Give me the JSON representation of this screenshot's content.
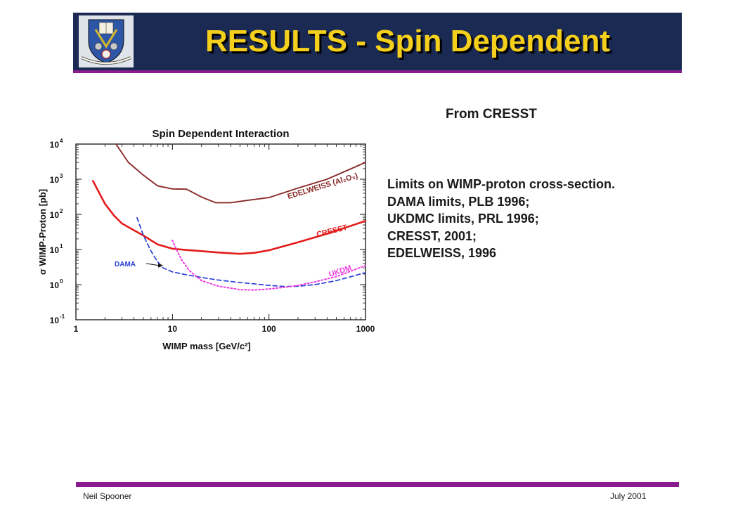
{
  "header": {
    "title": "RESULTS - Spin Dependent",
    "logo_icon": "university-crest-icon",
    "background_color": "#1b2a52",
    "title_color": "#f4cf1c",
    "rule_color": "#8a1b8f"
  },
  "side_heading": "From CRESST",
  "notes": [
    "Limits on WIMP-proton cross-section.",
    "DAMA limits, PLB 1996;",
    "UKDMC limits, PRL 1996;",
    "CRESST, 2001;",
    "EDELWEISS, 1996"
  ],
  "footer": {
    "author": "Neil Spooner",
    "date": "July 2001"
  },
  "chart_data": {
    "type": "line",
    "title": "Spin Dependent Interaction",
    "xlabel": "WIMP mass [GeV/c²]",
    "ylabel": "σ WIMP-Proton [pb]",
    "x_scale": "log",
    "y_scale": "log",
    "xlim": [
      1,
      1000
    ],
    "ylim": [
      0.1,
      10000
    ],
    "x_ticks": [
      {
        "value": 1,
        "label": "1"
      },
      {
        "value": 10,
        "label": "10"
      },
      {
        "value": 100,
        "label": "100"
      },
      {
        "value": 1000,
        "label": "1000"
      }
    ],
    "y_ticks": [
      {
        "value": 0.1,
        "base": "10",
        "exp": "-1"
      },
      {
        "value": 1,
        "base": "10",
        "exp": "0"
      },
      {
        "value": 10,
        "base": "10",
        "exp": "1"
      },
      {
        "value": 100,
        "base": "10",
        "exp": "2"
      },
      {
        "value": 1000,
        "base": "10",
        "exp": "3"
      },
      {
        "value": 10000,
        "base": "10",
        "exp": "4"
      }
    ],
    "grid": false,
    "series": [
      {
        "name": "EDELWEISS (Al2O3)",
        "label": "EDELWEISS (Al₂O₃)",
        "color": "#8b2a2a",
        "style": "solid",
        "x": [
          2.6,
          3.5,
          5,
          7,
          10,
          14,
          20,
          28,
          40,
          60,
          100,
          200,
          400,
          1000
        ],
        "y": [
          10000,
          3000,
          1300,
          650,
          530,
          520,
          310,
          215,
          215,
          250,
          300,
          560,
          1000,
          3000
        ]
      },
      {
        "name": "CRESST",
        "label": "CRESST",
        "color": "#e31b1b",
        "style": "solid",
        "x": [
          1.5,
          2,
          2.5,
          3,
          4,
          5,
          7,
          10,
          15,
          20,
          30,
          50,
          70,
          100,
          200,
          400,
          1000
        ],
        "y": [
          900,
          200,
          90,
          55,
          35,
          25,
          14,
          10.5,
          9.5,
          9,
          8.2,
          7.5,
          8,
          9.5,
          16,
          28,
          65
        ]
      },
      {
        "name": "DAMA",
        "label": "DAMA",
        "color": "#2a3fd6",
        "style": "dashed",
        "x": [
          4.3,
          5,
          6,
          7,
          8,
          10,
          14,
          20,
          30,
          50,
          70,
          100,
          150,
          200,
          300,
          500,
          1000
        ],
        "y": [
          80,
          25,
          9,
          4.5,
          3,
          2.3,
          1.9,
          1.6,
          1.35,
          1.15,
          1.05,
          0.95,
          0.88,
          0.9,
          1.0,
          1.3,
          2.2
        ]
      },
      {
        "name": "UKDMC",
        "label": "UKDM",
        "color": "#f03ce0",
        "style": "dotted",
        "x": [
          10,
          11,
          12.5,
          15,
          20,
          30,
          50,
          70,
          100,
          150,
          200,
          300,
          500,
          1000
        ],
        "y": [
          18,
          10,
          5,
          2.5,
          1.3,
          0.9,
          0.72,
          0.7,
          0.75,
          0.85,
          0.95,
          1.2,
          1.7,
          3.5
        ]
      }
    ],
    "annotations": [
      {
        "text": "DAMA",
        "color": "#2a3fd6",
        "arrow_to_x": 8,
        "arrow_to_y": 3.5
      }
    ]
  }
}
